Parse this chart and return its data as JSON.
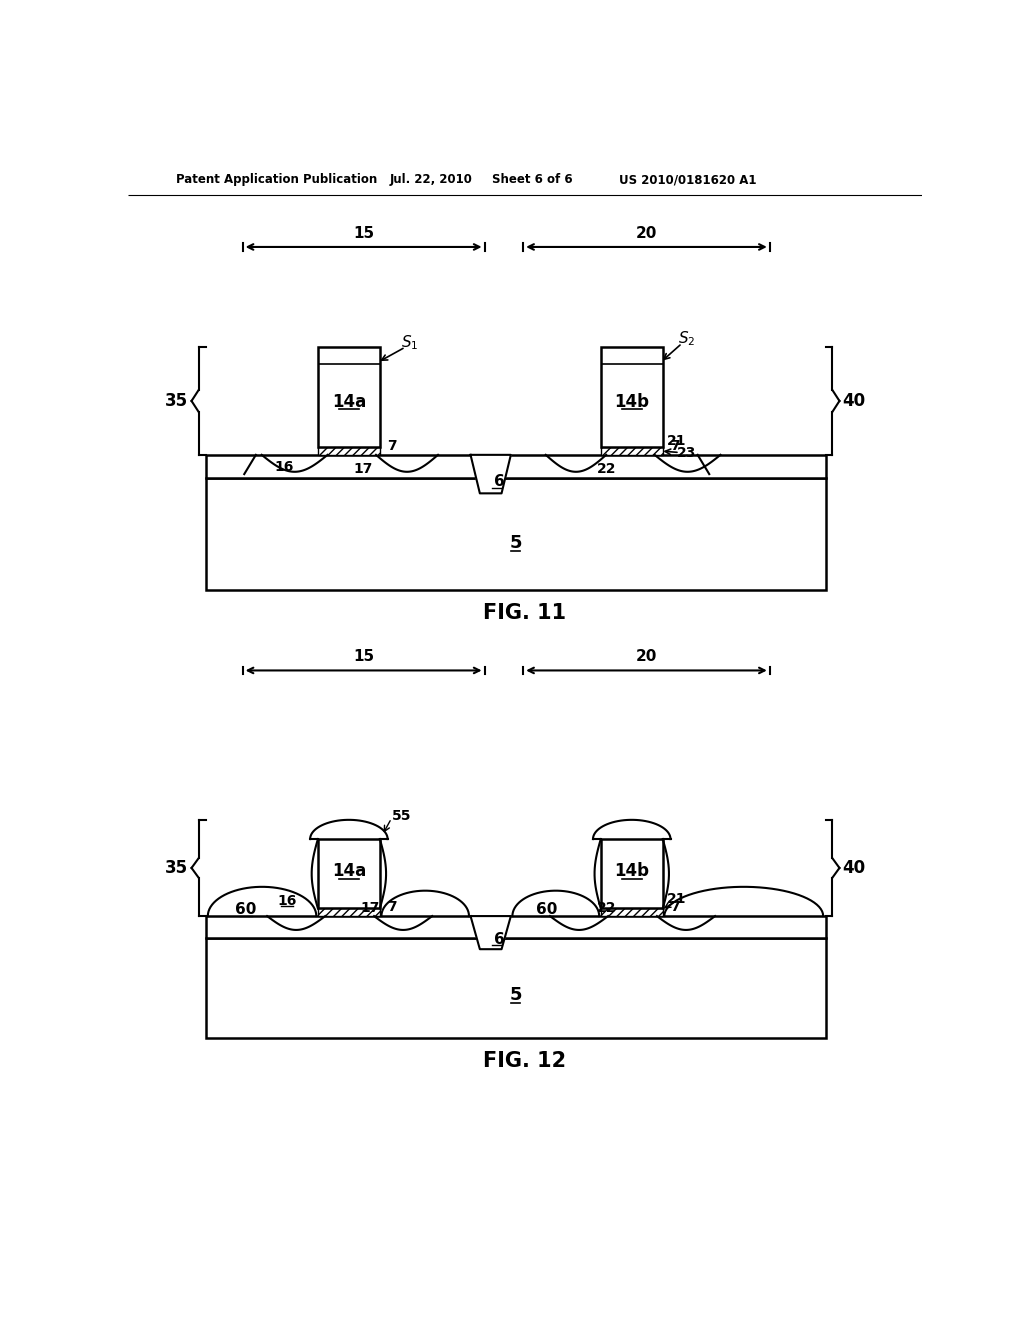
{
  "bg_color": "#ffffff",
  "header_text": "Patent Application Publication",
  "header_date": "Jul. 22, 2010",
  "header_sheet": "Sheet 6 of 6",
  "header_patent": "US 2010/0181620 A1",
  "fig11_label": "FIG. 11",
  "fig12_label": "FIG. 12"
}
